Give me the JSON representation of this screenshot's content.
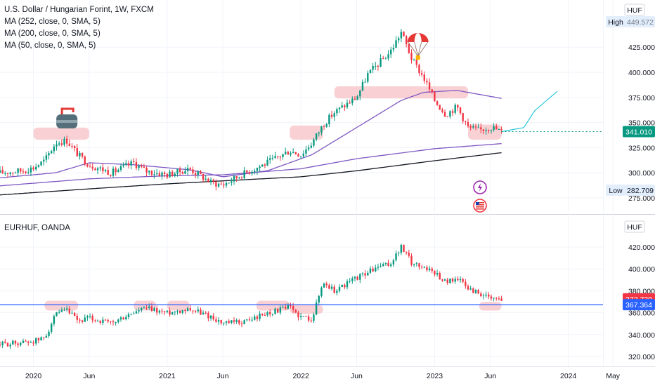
{
  "top_panel": {
    "legend": [
      "U.S. Dollar / Hungarian Forint, 1W, FXCM",
      "MA (252, close, 0, SMA, 5)",
      "MA (200, close, 0, SMA, 5)",
      "MA (50, close, 0, SMA, 5)"
    ],
    "currency_label": "HUF",
    "high_label": "High",
    "high_value": "449.572",
    "low_label": "Low",
    "low_value": "282.709",
    "last_price": "341.010",
    "colors": {
      "last_tag": "#089981",
      "projection": "#26c6da",
      "ma50": "#7e57c2",
      "ma200": "#7e57c2",
      "ma252": "#131722",
      "zone": "#f8c9cd"
    },
    "icons": [
      "curling-stone-icon",
      "parachute-icon",
      "lightning-icon",
      "us-flag-icon"
    ]
  },
  "bottom_panel": {
    "legend": [
      "EURHUF, OANDA"
    ],
    "currency_label": "HUF",
    "tag_a": "372.720",
    "tag_b": "367.364",
    "colors": {
      "tag_a": "#f23645",
      "tag_b": "#2962ff",
      "hline": "#2962ff",
      "zone": "#f8c9cd"
    }
  },
  "time_axis": [
    "2020",
    "Jun",
    "2021",
    "Jun",
    "2022",
    "Jun",
    "2023",
    "Jun",
    "2024",
    "May"
  ],
  "chart_data": [
    {
      "type": "candlestick",
      "title": "U.S. Dollar / Hungarian Forint, 1W, FXCM",
      "x_range": [
        "2019-10",
        "2024-06"
      ],
      "ylim": [
        270,
        455
      ],
      "y_ticks": [
        275.0,
        300.0,
        325.0,
        350.0,
        375.0,
        400.0,
        425.0,
        449.572
      ],
      "x_ticks": [
        "2020",
        "Jun",
        "2021",
        "Jun",
        "2022",
        "Jun",
        "2023",
        "Jun",
        "2024",
        "May"
      ],
      "close_path": [
        [
          "2019-10",
          300
        ],
        [
          "2019-12",
          302
        ],
        [
          "2020-01",
          305
        ],
        [
          "2020-02",
          312
        ],
        [
          "2020-03",
          330
        ],
        [
          "2020-04",
          332
        ],
        [
          "2020-05",
          318
        ],
        [
          "2020-06",
          308
        ],
        [
          "2020-08",
          300
        ],
        [
          "2020-10",
          310
        ],
        [
          "2020-11",
          302
        ],
        [
          "2021-01",
          298
        ],
        [
          "2021-03",
          304
        ],
        [
          "2021-05",
          290
        ],
        [
          "2021-06",
          288
        ],
        [
          "2021-08",
          300
        ],
        [
          "2021-10",
          310
        ],
        [
          "2021-12",
          322
        ],
        [
          "2022-01",
          318
        ],
        [
          "2022-02",
          330
        ],
        [
          "2022-03",
          348
        ],
        [
          "2022-04",
          360
        ],
        [
          "2022-06",
          375
        ],
        [
          "2022-07",
          398
        ],
        [
          "2022-09",
          420
        ],
        [
          "2022-10",
          440
        ],
        [
          "2022-11",
          412
        ],
        [
          "2022-12",
          395
        ],
        [
          "2023-01",
          372
        ],
        [
          "2023-02",
          358
        ],
        [
          "2023-03",
          366
        ],
        [
          "2023-04",
          345
        ],
        [
          "2023-05",
          342
        ],
        [
          "2023-06",
          346
        ],
        [
          "2023-07",
          341
        ]
      ],
      "series": [
        {
          "name": "MA (252, close, 0, SMA, 5)",
          "values": [
            [
              "2019-10",
              278
            ],
            [
              "2020-06",
              284
            ],
            [
              "2021-01",
              289
            ],
            [
              "2021-06",
              292
            ],
            [
              "2022-01",
              296
            ],
            [
              "2022-06",
              302
            ],
            [
              "2023-01",
              312
            ],
            [
              "2023-07",
              320
            ]
          ]
        },
        {
          "name": "MA (200, close, 0, SMA, 5)",
          "values": [
            [
              "2019-10",
              287
            ],
            [
              "2020-06",
              294
            ],
            [
              "2021-01",
              297
            ],
            [
              "2021-06",
              298
            ],
            [
              "2022-01",
              304
            ],
            [
              "2022-06",
              314
            ],
            [
              "2023-01",
              324
            ],
            [
              "2023-07",
              329
            ]
          ]
        },
        {
          "name": "MA (50, close, 0, SMA, 5)",
          "values": [
            [
              "2019-10",
              295
            ],
            [
              "2020-03",
              300
            ],
            [
              "2020-06",
              310
            ],
            [
              "2020-10",
              308
            ],
            [
              "2021-03",
              303
            ],
            [
              "2021-06",
              296
            ],
            [
              "2021-10",
              302
            ],
            [
              "2022-02",
              318
            ],
            [
              "2022-06",
              345
            ],
            [
              "2022-10",
              372
            ],
            [
              "2022-12",
              380
            ],
            [
              "2023-03",
              382
            ],
            [
              "2023-07",
              374
            ]
          ]
        }
      ],
      "projection": [
        [
          "2023-07",
          341
        ],
        [
          "2023-09",
          345
        ],
        [
          "2023-10",
          362
        ],
        [
          "2023-12",
          381
        ]
      ],
      "zones": [
        {
          "from": "2020-01",
          "to": "2020-06",
          "low": 333,
          "high": 345
        },
        {
          "from": "2021-12",
          "to": "2022-03",
          "low": 333,
          "high": 347
        },
        {
          "from": "2022-04",
          "to": "2023-04",
          "low": 374,
          "high": 386
        },
        {
          "from": "2023-04",
          "to": "2023-07",
          "low": 333,
          "high": 348
        }
      ]
    },
    {
      "type": "candlestick",
      "title": "EURHUF, OANDA",
      "x_range": [
        "2019-10",
        "2024-06"
      ],
      "ylim": [
        315,
        432
      ],
      "y_ticks": [
        320.0,
        340.0,
        360.0,
        380.0,
        400.0,
        420.0
      ],
      "close_path": [
        [
          "2019-10",
          331
        ],
        [
          "2019-12",
          333
        ],
        [
          "2020-01",
          334
        ],
        [
          "2020-02",
          337
        ],
        [
          "2020-03",
          358
        ],
        [
          "2020-04",
          362
        ],
        [
          "2020-05",
          352
        ],
        [
          "2020-06",
          355
        ],
        [
          "2020-08",
          350
        ],
        [
          "2020-10",
          360
        ],
        [
          "2020-11",
          364
        ],
        [
          "2021-01",
          360
        ],
        [
          "2021-02",
          362
        ],
        [
          "2021-03",
          364
        ],
        [
          "2021-05",
          356
        ],
        [
          "2021-06",
          350
        ],
        [
          "2021-08",
          352
        ],
        [
          "2021-10",
          360
        ],
        [
          "2021-12",
          365
        ],
        [
          "2022-01",
          356
        ],
        [
          "2022-02",
          355
        ],
        [
          "2022-03",
          388
        ],
        [
          "2022-04",
          380
        ],
        [
          "2022-06",
          392
        ],
        [
          "2022-08",
          402
        ],
        [
          "2022-09",
          404
        ],
        [
          "2022-10",
          420
        ],
        [
          "2022-11",
          405
        ],
        [
          "2022-12",
          402
        ],
        [
          "2023-01",
          397
        ],
        [
          "2023-02",
          388
        ],
        [
          "2023-03",
          392
        ],
        [
          "2023-04",
          382
        ],
        [
          "2023-05",
          378
        ],
        [
          "2023-06",
          372
        ],
        [
          "2023-07",
          372.72
        ]
      ],
      "horizontal_line": 367.364,
      "zones": [
        {
          "from": "2020-02",
          "to": "2020-05",
          "low": 362,
          "high": 371
        },
        {
          "from": "2020-10",
          "to": "2020-12",
          "low": 362,
          "high": 371
        },
        {
          "from": "2021-01",
          "to": "2021-03",
          "low": 362,
          "high": 371
        },
        {
          "from": "2021-09",
          "to": "2021-12",
          "low": 362,
          "high": 371
        },
        {
          "from": "2021-12",
          "to": "2022-03",
          "low": 359,
          "high": 367
        },
        {
          "from": "2023-05",
          "to": "2023-07",
          "low": 362,
          "high": 370
        }
      ]
    }
  ]
}
